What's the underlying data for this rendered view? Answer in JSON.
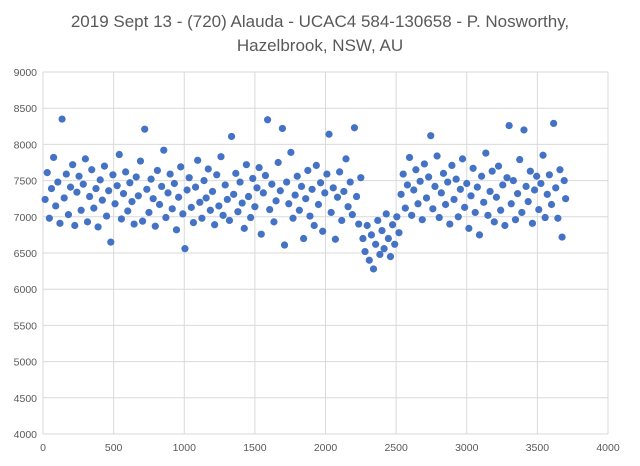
{
  "chart_data": {
    "type": "scatter",
    "title_lines": [
      "2019 Sept 13 - (720) Alauda - UCAC4 584-130658 - P. Nosworthy,",
      "Hazelbrook, NSW, AU"
    ],
    "xlabel": "",
    "ylabel": "",
    "xlim": [
      0,
      4000
    ],
    "ylim": [
      4000,
      9000
    ],
    "xticks": [
      0,
      500,
      1000,
      1500,
      2000,
      2500,
      3000,
      3500,
      4000
    ],
    "yticks": [
      4000,
      4500,
      5000,
      5500,
      6000,
      6500,
      7000,
      7500,
      8000,
      8500,
      9000
    ],
    "grid": true,
    "legend": "none",
    "marker_color": "#4472C4",
    "series": [
      {
        "points": [
          [
            15,
            7240
          ],
          [
            30,
            7610
          ],
          [
            45,
            6980
          ],
          [
            60,
            7390
          ],
          [
            75,
            7820
          ],
          [
            90,
            7150
          ],
          [
            105,
            7480
          ],
          [
            120,
            6910
          ],
          [
            135,
            8350
          ],
          [
            150,
            7260
          ],
          [
            165,
            7590
          ],
          [
            180,
            7030
          ],
          [
            195,
            7410
          ],
          [
            210,
            7720
          ],
          [
            225,
            6880
          ],
          [
            240,
            7340
          ],
          [
            255,
            7560
          ],
          [
            270,
            7090
          ],
          [
            285,
            7450
          ],
          [
            300,
            7800
          ],
          [
            315,
            6930
          ],
          [
            330,
            7280
          ],
          [
            345,
            7650
          ],
          [
            360,
            7120
          ],
          [
            375,
            7390
          ],
          [
            390,
            6860
          ],
          [
            405,
            7510
          ],
          [
            420,
            7230
          ],
          [
            435,
            7700
          ],
          [
            450,
            7010
          ],
          [
            465,
            7360
          ],
          [
            480,
            6650
          ],
          [
            495,
            7580
          ],
          [
            510,
            7180
          ],
          [
            525,
            7430
          ],
          [
            540,
            7860
          ],
          [
            555,
            6970
          ],
          [
            570,
            7320
          ],
          [
            585,
            7620
          ],
          [
            600,
            7080
          ],
          [
            615,
            7470
          ],
          [
            630,
            7210
          ],
          [
            645,
            6900
          ],
          [
            660,
            7550
          ],
          [
            675,
            7290
          ],
          [
            690,
            7770
          ],
          [
            705,
            6940
          ],
          [
            720,
            8210
          ],
          [
            735,
            7380
          ],
          [
            750,
            7060
          ],
          [
            765,
            7520
          ],
          [
            780,
            7250
          ],
          [
            795,
            6870
          ],
          [
            810,
            7640
          ],
          [
            825,
            7170
          ],
          [
            840,
            7420
          ],
          [
            855,
            7920
          ],
          [
            870,
            6990
          ],
          [
            885,
            7330
          ],
          [
            900,
            7590
          ],
          [
            915,
            7110
          ],
          [
            930,
            7460
          ],
          [
            945,
            6820
          ],
          [
            960,
            7270
          ],
          [
            975,
            7690
          ],
          [
            990,
            7040
          ],
          [
            1005,
            6560
          ],
          [
            1020,
            7370
          ],
          [
            1035,
            7540
          ],
          [
            1050,
            7130
          ],
          [
            1065,
            6920
          ],
          [
            1080,
            7410
          ],
          [
            1095,
            7780
          ],
          [
            1110,
            7200
          ],
          [
            1125,
            6980
          ],
          [
            1140,
            7500
          ],
          [
            1155,
            7260
          ],
          [
            1170,
            7660
          ],
          [
            1185,
            7090
          ],
          [
            1200,
            7350
          ],
          [
            1215,
            6890
          ],
          [
            1230,
            7580
          ],
          [
            1245,
            7150
          ],
          [
            1260,
            7830
          ],
          [
            1275,
            7020
          ],
          [
            1290,
            7440
          ],
          [
            1305,
            7240
          ],
          [
            1320,
            6950
          ],
          [
            1335,
            8110
          ],
          [
            1350,
            7310
          ],
          [
            1365,
            7600
          ],
          [
            1380,
            7070
          ],
          [
            1395,
            7480
          ],
          [
            1410,
            7190
          ],
          [
            1425,
            6840
          ],
          [
            1440,
            7720
          ],
          [
            1455,
            7280
          ],
          [
            1470,
            6990
          ],
          [
            1485,
            7530
          ],
          [
            1500,
            7140
          ],
          [
            1515,
            7400
          ],
          [
            1530,
            7680
          ],
          [
            1545,
            6760
          ],
          [
            1560,
            7330
          ],
          [
            1575,
            7570
          ],
          [
            1590,
            8340
          ],
          [
            1605,
            7100
          ],
          [
            1620,
            7450
          ],
          [
            1635,
            6930
          ],
          [
            1650,
            7220
          ],
          [
            1665,
            7750
          ],
          [
            1680,
            7360
          ],
          [
            1695,
            8220
          ],
          [
            1710,
            6610
          ],
          [
            1725,
            7480
          ],
          [
            1740,
            7180
          ],
          [
            1755,
            7890
          ],
          [
            1770,
            6980
          ],
          [
            1785,
            7300
          ],
          [
            1800,
            7560
          ],
          [
            1815,
            7090
          ],
          [
            1830,
            7420
          ],
          [
            1845,
            6700
          ],
          [
            1860,
            7250
          ],
          [
            1875,
            7640
          ],
          [
            1890,
            7010
          ],
          [
            1905,
            7380
          ],
          [
            1920,
            6880
          ],
          [
            1935,
            7710
          ],
          [
            1950,
            7170
          ],
          [
            1965,
            7470
          ],
          [
            1980,
            6800
          ],
          [
            1995,
            7330
          ],
          [
            2010,
            7590
          ],
          [
            2025,
            8140
          ],
          [
            2040,
            7060
          ],
          [
            2055,
            7400
          ],
          [
            2070,
            6690
          ],
          [
            2085,
            7270
          ],
          [
            2100,
            7620
          ],
          [
            2115,
            6950
          ],
          [
            2130,
            7350
          ],
          [
            2145,
            7800
          ],
          [
            2160,
            7140
          ],
          [
            2175,
            7480
          ],
          [
            2190,
            7030
          ],
          [
            2205,
            8230
          ],
          [
            2220,
            7280
          ],
          [
            2235,
            6900
          ],
          [
            2250,
            7540
          ],
          [
            2265,
            6700
          ],
          [
            2280,
            6520
          ],
          [
            2295,
            6880
          ],
          [
            2310,
            6400
          ],
          [
            2325,
            6750
          ],
          [
            2340,
            6280
          ],
          [
            2355,
            6620
          ],
          [
            2370,
            6950
          ],
          [
            2385,
            6480
          ],
          [
            2400,
            6810
          ],
          [
            2415,
            6560
          ],
          [
            2430,
            7040
          ],
          [
            2445,
            6700
          ],
          [
            2460,
            6450
          ],
          [
            2475,
            6890
          ],
          [
            2490,
            6620
          ],
          [
            2505,
            7000
          ],
          [
            2520,
            6780
          ],
          [
            2535,
            7310
          ],
          [
            2550,
            7590
          ],
          [
            2565,
            7120
          ],
          [
            2580,
            7440
          ],
          [
            2595,
            7820
          ],
          [
            2610,
            7020
          ],
          [
            2625,
            7370
          ],
          [
            2640,
            7650
          ],
          [
            2655,
            7180
          ],
          [
            2670,
            7490
          ],
          [
            2685,
            6960
          ],
          [
            2700,
            7730
          ],
          [
            2715,
            7260
          ],
          [
            2730,
            7550
          ],
          [
            2745,
            8120
          ],
          [
            2760,
            7110
          ],
          [
            2775,
            7420
          ],
          [
            2790,
            7840
          ],
          [
            2805,
            6990
          ],
          [
            2820,
            7330
          ],
          [
            2835,
            7600
          ],
          [
            2850,
            7170
          ],
          [
            2865,
            7480
          ],
          [
            2880,
            6900
          ],
          [
            2895,
            7710
          ],
          [
            2910,
            7240
          ],
          [
            2925,
            7520
          ],
          [
            2940,
            7000
          ],
          [
            2955,
            7380
          ],
          [
            2970,
            7800
          ],
          [
            2985,
            7130
          ],
          [
            3000,
            7460
          ],
          [
            3015,
            6840
          ],
          [
            3030,
            7290
          ],
          [
            3045,
            7670
          ],
          [
            3060,
            7060
          ],
          [
            3075,
            7410
          ],
          [
            3090,
            6750
          ],
          [
            3105,
            7560
          ],
          [
            3120,
            7200
          ],
          [
            3135,
            7880
          ],
          [
            3150,
            7020
          ],
          [
            3165,
            7350
          ],
          [
            3180,
            7630
          ],
          [
            3195,
            6930
          ],
          [
            3210,
            7270
          ],
          [
            3225,
            7700
          ],
          [
            3240,
            7090
          ],
          [
            3255,
            7440
          ],
          [
            3270,
            6880
          ],
          [
            3285,
            7540
          ],
          [
            3300,
            8260
          ],
          [
            3315,
            7180
          ],
          [
            3330,
            7500
          ],
          [
            3345,
            6960
          ],
          [
            3360,
            7320
          ],
          [
            3375,
            7790
          ],
          [
            3390,
            7060
          ],
          [
            3405,
            8200
          ],
          [
            3420,
            7420
          ],
          [
            3435,
            7210
          ],
          [
            3450,
            7630
          ],
          [
            3465,
            6910
          ],
          [
            3480,
            7370
          ],
          [
            3495,
            7560
          ],
          [
            3510,
            7100
          ],
          [
            3525,
            7460
          ],
          [
            3540,
            7850
          ],
          [
            3555,
            6990
          ],
          [
            3570,
            7310
          ],
          [
            3585,
            7580
          ],
          [
            3600,
            7170
          ],
          [
            3615,
            8290
          ],
          [
            3630,
            7400
          ],
          [
            3645,
            6980
          ],
          [
            3660,
            7650
          ],
          [
            3675,
            6720
          ],
          [
            3690,
            7500
          ],
          [
            3700,
            7250
          ]
        ]
      }
    ]
  }
}
